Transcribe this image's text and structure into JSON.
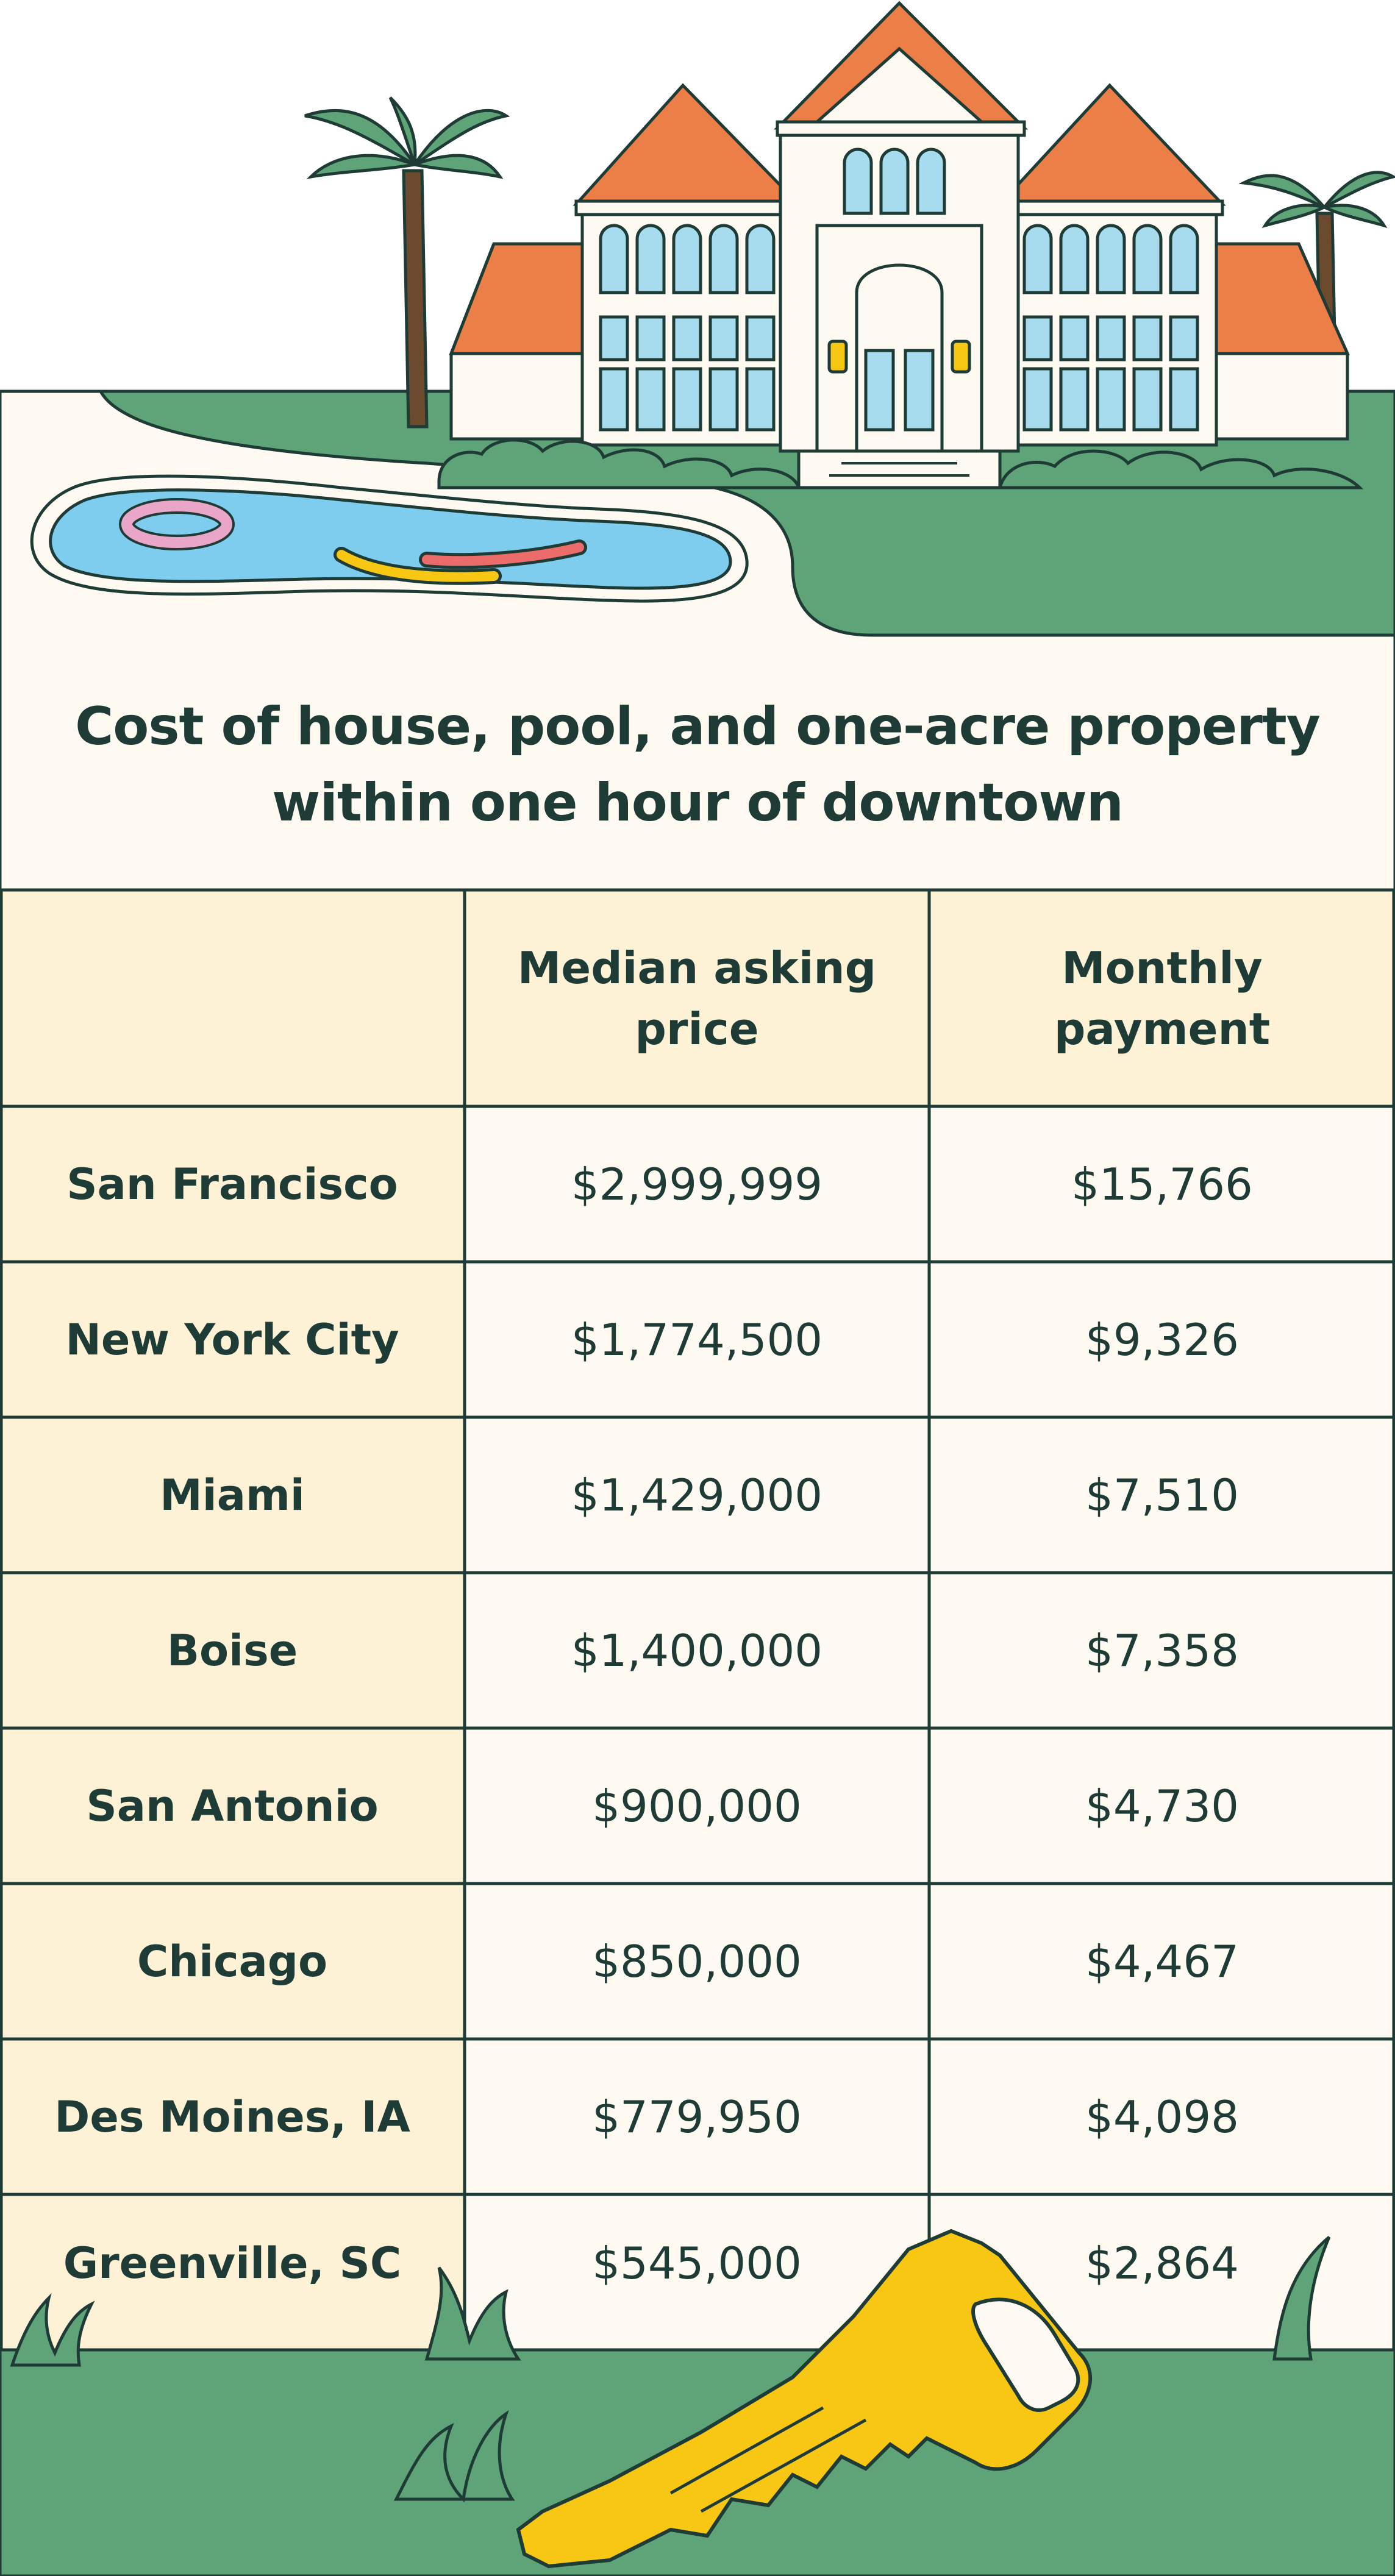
{
  "title": {
    "line1": "Cost of house, pool, and one-acre property",
    "line2": "within one hour of downtown"
  },
  "table": {
    "columns": [
      "",
      "Median asking price",
      "Monthly payment"
    ],
    "header_lines": {
      "col1_line1": "Median asking",
      "col1_line2": "price",
      "col2_line1": "Monthly",
      "col2_line2": "payment"
    },
    "rows": [
      {
        "city": "San Francisco",
        "price": "$2,999,999",
        "payment": "$15,766"
      },
      {
        "city": "New York City",
        "price": "$1,774,500",
        "payment": "$9,326"
      },
      {
        "city": "Miami",
        "price": "$1,429,000",
        "payment": "$7,510"
      },
      {
        "city": "Boise",
        "price": "$1,400,000",
        "payment": "$7,358"
      },
      {
        "city": "San Antonio",
        "price": "$900,000",
        "payment": "$4,730"
      },
      {
        "city": "Chicago",
        "price": "$850,000",
        "payment": "$4,467"
      },
      {
        "city": "Des Moines, IA",
        "price": "$779,950",
        "payment": "$4,098"
      },
      {
        "city": "Greenville, SC",
        "price": "$545,000",
        "payment": "$2,864"
      }
    ]
  },
  "colors": {
    "ink": "#1e3b36",
    "header_bg": "#fdf1d6",
    "city_bg": "#fdf1d6",
    "value_bg": "#fefaf1",
    "top_bg": "#fefaf1",
    "lawn": "#5fa478",
    "roof": "#ec7f47",
    "pool": "#7fcdee",
    "key": "#f8c714"
  },
  "illustration": {
    "icons": [
      "mansion-icon",
      "palm-tree-icon",
      "pool-icon",
      "pool-ring-icon",
      "pool-noodle-icon",
      "key-icon",
      "grass-icon"
    ]
  }
}
